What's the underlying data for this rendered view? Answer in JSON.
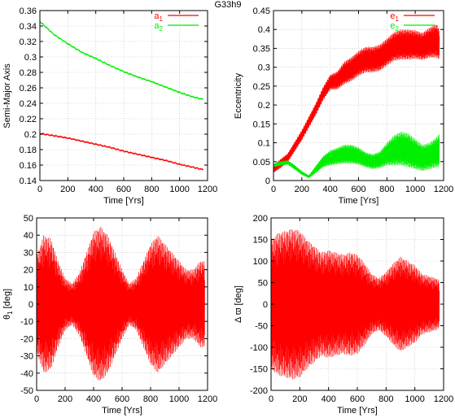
{
  "figure_title": "G33h9",
  "chart_data": [
    {
      "type": "line",
      "xlabel": "Time [Yrs]",
      "ylabel": "Semi-Major Axis",
      "xlim": [
        0,
        1200
      ],
      "ylim": [
        0.14,
        0.36
      ],
      "xticks": [
        0,
        200,
        400,
        600,
        800,
        1000,
        1200
      ],
      "yticks": [
        0.14,
        0.16,
        0.18,
        0.2,
        0.22,
        0.24,
        0.26,
        0.28,
        0.3,
        0.32,
        0.34,
        0.36
      ],
      "ytick_labels": [
        "0.14",
        "0.16",
        "0.18",
        "0.2",
        "0.22",
        "0.24",
        "0.26",
        "0.28",
        "0.3",
        "0.32",
        "0.34",
        "0.36"
      ],
      "grid": true,
      "legend": "top-right",
      "series": [
        {
          "name": "a1",
          "name_main": "a",
          "name_sub": "1",
          "color": "#ff0000",
          "x": [
            0,
            100,
            200,
            300,
            400,
            500,
            600,
            700,
            800,
            900,
            1000,
            1100,
            1170
          ],
          "y": [
            0.201,
            0.198,
            0.195,
            0.191,
            0.187,
            0.183,
            0.178,
            0.174,
            0.17,
            0.166,
            0.161,
            0.157,
            0.154
          ]
        },
        {
          "name": "a2",
          "name_main": "a",
          "name_sub": "2",
          "color": "#00ee00",
          "x": [
            0,
            100,
            200,
            300,
            400,
            500,
            600,
            700,
            800,
            900,
            1000,
            1100,
            1170
          ],
          "y": [
            0.346,
            0.329,
            0.317,
            0.306,
            0.298,
            0.289,
            0.281,
            0.274,
            0.268,
            0.261,
            0.254,
            0.248,
            0.245
          ]
        }
      ]
    },
    {
      "type": "line",
      "xlabel": "Time [Yrs]",
      "ylabel": "Eccentricity",
      "xlim": [
        0,
        1200
      ],
      "ylim": [
        0,
        0.45
      ],
      "xticks": [
        0,
        200,
        400,
        600,
        800,
        1000,
        1200
      ],
      "yticks": [
        0,
        0.05,
        0.1,
        0.15,
        0.2,
        0.25,
        0.3,
        0.35,
        0.4,
        0.45
      ],
      "ytick_labels": [
        "0",
        "0.05",
        "0.1",
        "0.15",
        "0.2",
        "0.25",
        "0.3",
        "0.35",
        "0.4",
        "0.45"
      ],
      "grid": true,
      "legend": "top-right",
      "series": [
        {
          "name": "e1",
          "name_main": "e",
          "name_sub": "1",
          "color": "#ff0000",
          "x": [
            0,
            50,
            100,
            150,
            200,
            250,
            300,
            350,
            400,
            450,
            500,
            550,
            600,
            650,
            700,
            750,
            800,
            850,
            900,
            950,
            1000,
            1050,
            1100,
            1150,
            1170
          ],
          "y_mid": [
            0.03,
            0.045,
            0.06,
            0.09,
            0.12,
            0.155,
            0.19,
            0.23,
            0.26,
            0.265,
            0.285,
            0.295,
            0.31,
            0.32,
            0.32,
            0.325,
            0.34,
            0.355,
            0.36,
            0.36,
            0.36,
            0.355,
            0.365,
            0.37,
            0.36
          ],
          "y_amp": [
            0.01,
            0.012,
            0.012,
            0.013,
            0.014,
            0.015,
            0.016,
            0.018,
            0.02,
            0.024,
            0.03,
            0.032,
            0.033,
            0.034,
            0.034,
            0.035,
            0.036,
            0.038,
            0.04,
            0.04,
            0.038,
            0.036,
            0.04,
            0.045,
            0.04
          ]
        },
        {
          "name": "e2",
          "name_main": "e",
          "name_sub": "2",
          "color": "#00ee00",
          "x": [
            0,
            50,
            100,
            150,
            200,
            250,
            300,
            350,
            400,
            450,
            500,
            550,
            600,
            650,
            700,
            750,
            800,
            850,
            900,
            950,
            1000,
            1050,
            1100,
            1150,
            1170
          ],
          "y_mid": [
            0.04,
            0.045,
            0.048,
            0.035,
            0.02,
            0.01,
            0.03,
            0.05,
            0.06,
            0.065,
            0.07,
            0.07,
            0.065,
            0.055,
            0.05,
            0.055,
            0.07,
            0.08,
            0.085,
            0.08,
            0.07,
            0.06,
            0.065,
            0.075,
            0.08
          ],
          "y_amp": [
            0.005,
            0.006,
            0.006,
            0.006,
            0.005,
            0.004,
            0.01,
            0.015,
            0.02,
            0.022,
            0.025,
            0.025,
            0.023,
            0.02,
            0.02,
            0.022,
            0.03,
            0.04,
            0.045,
            0.045,
            0.04,
            0.035,
            0.035,
            0.04,
            0.045
          ]
        }
      ]
    },
    {
      "type": "line",
      "xlabel": "Time [Yrs]",
      "ylabel_main": "θ",
      "ylabel_sub": "1",
      "ylabel_unit": "[deg]",
      "xlim": [
        0,
        1200
      ],
      "ylim": [
        -50,
        50
      ],
      "xticks": [
        0,
        200,
        400,
        600,
        800,
        1000,
        1200
      ],
      "yticks": [
        -50,
        -40,
        -30,
        -20,
        -10,
        0,
        10,
        20,
        30,
        40,
        50
      ],
      "ytick_labels": [
        "-50",
        "-40",
        "-30",
        "-20",
        "-10",
        "0",
        "10",
        "20",
        "30",
        "40",
        "50"
      ],
      "grid": true,
      "series": [
        {
          "name": "",
          "color": "#ff0000",
          "x": [
            0,
            50,
            100,
            150,
            200,
            250,
            300,
            350,
            400,
            450,
            500,
            550,
            600,
            650,
            700,
            750,
            800,
            850,
            900,
            950,
            1000,
            1050,
            1100,
            1150,
            1180
          ],
          "y_mid": [
            0,
            0,
            0,
            0,
            0,
            0,
            0,
            0,
            0,
            0,
            0,
            0,
            0,
            0,
            0,
            0,
            0,
            0,
            0,
            0,
            0,
            0,
            0,
            0,
            0
          ],
          "y_amp": [
            28,
            40,
            38,
            25,
            15,
            12,
            18,
            30,
            42,
            45,
            40,
            30,
            20,
            12,
            15,
            25,
            35,
            40,
            35,
            30,
            25,
            20,
            20,
            25,
            25
          ]
        }
      ]
    },
    {
      "type": "line",
      "xlabel": "Time [Yrs]",
      "ylabel_main": "Δ ϖ",
      "ylabel_sub": "",
      "ylabel_unit": "[deg]",
      "xlim": [
        0,
        1200
      ],
      "ylim": [
        -200,
        200
      ],
      "xticks": [
        0,
        200,
        400,
        600,
        800,
        1000,
        1200
      ],
      "yticks": [
        -200,
        -150,
        -100,
        -50,
        0,
        50,
        100,
        150,
        200
      ],
      "ytick_labels": [
        "-200",
        "-150",
        "-100",
        "-50",
        "0",
        "50",
        "100",
        "150",
        "200"
      ],
      "grid": true,
      "series": [
        {
          "name": "",
          "color": "#ff0000",
          "x": [
            0,
            50,
            100,
            150,
            200,
            250,
            300,
            350,
            400,
            450,
            500,
            550,
            600,
            650,
            700,
            750,
            800,
            850,
            900,
            950,
            1000,
            1050,
            1100,
            1150,
            1170
          ],
          "y_mid": [
            0,
            0,
            0,
            0,
            0,
            0,
            0,
            0,
            0,
            0,
            0,
            0,
            0,
            0,
            0,
            0,
            0,
            0,
            0,
            0,
            0,
            0,
            0,
            0,
            0
          ],
          "y_amp": [
            150,
            165,
            170,
            175,
            170,
            150,
            135,
            120,
            125,
            120,
            115,
            120,
            115,
            95,
            70,
            60,
            75,
            95,
            110,
            100,
            90,
            70,
            65,
            60,
            55
          ]
        }
      ]
    }
  ]
}
